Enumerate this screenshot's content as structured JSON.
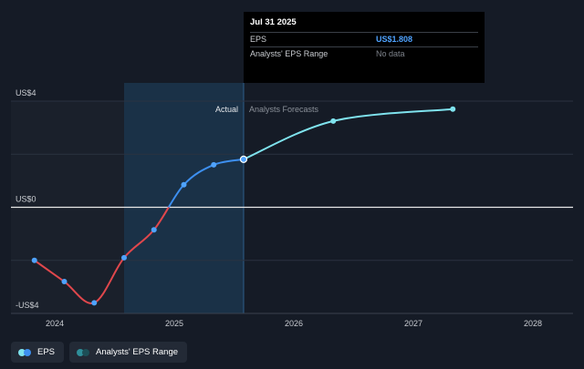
{
  "chart_data": {
    "type": "line",
    "y_axis_labels": [
      "US$4",
      "US$0",
      "-US$4"
    ],
    "ylim": [
      -4,
      4
    ],
    "x_ticks": [
      "2024",
      "2025",
      "2026",
      "2027",
      "2028"
    ],
    "region_labels": {
      "actual": "Actual",
      "forecast": "Analysts Forecasts"
    },
    "series": [
      {
        "name": "EPS",
        "actual": [
          {
            "x": 2023.83,
            "y": -2.0
          },
          {
            "x": 2024.08,
            "y": -2.8
          },
          {
            "x": 2024.33,
            "y": -3.6
          },
          {
            "x": 2024.58,
            "y": -1.9
          },
          {
            "x": 2024.83,
            "y": -0.85
          },
          {
            "x": 2025.08,
            "y": 0.85
          },
          {
            "x": 2025.33,
            "y": 1.6
          },
          {
            "x": 2025.58,
            "y": 1.808
          }
        ],
        "forecast": [
          {
            "x": 2025.58,
            "y": 1.808
          },
          {
            "x": 2026.33,
            "y": 3.25
          },
          {
            "x": 2027.33,
            "y": 3.7
          }
        ]
      }
    ]
  },
  "tooltip": {
    "date": "Jul 31 2025",
    "rows": [
      {
        "label": "EPS",
        "value": "US$1.808"
      },
      {
        "label": "Analysts' EPS Range",
        "value": "No data"
      }
    ]
  },
  "legend": [
    {
      "label": "EPS"
    },
    {
      "label": "Analysts' EPS Range"
    }
  ],
  "colors": {
    "positive_line": "#3d8ff0",
    "negative_line": "#e0474c",
    "forecast_line": "#7fe3ee",
    "dot": "#4fa3ff",
    "range_dot_a": "#2f8f9a",
    "range_dot_b": "#1d4f57"
  }
}
